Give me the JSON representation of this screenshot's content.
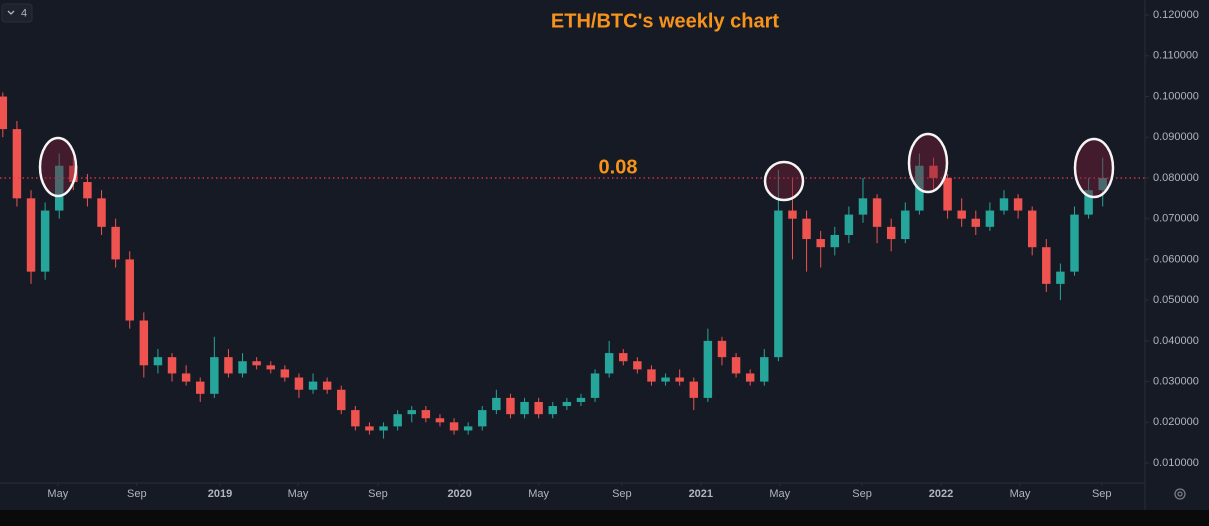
{
  "toolbar": {
    "badge": "4"
  },
  "chart_data": {
    "type": "candlestick",
    "title": "ETH/BTC's weekly chart",
    "x": [
      0,
      3,
      6,
      9,
      12,
      15,
      18,
      21,
      24,
      27,
      30,
      33,
      36,
      39,
      42,
      45,
      48,
      51,
      54,
      57,
      60,
      63,
      66,
      69,
      72,
      75,
      78,
      81,
      84,
      87,
      90,
      93,
      96,
      99,
      102,
      105,
      108,
      111,
      114,
      117,
      120,
      123,
      126,
      129,
      132,
      135,
      138,
      141,
      144,
      147,
      150,
      153,
      156,
      159,
      162,
      165,
      168,
      171,
      174,
      177,
      180,
      183,
      186,
      189,
      192,
      195,
      198,
      201,
      204,
      207,
      210,
      213,
      216,
      219,
      222,
      225,
      228,
      231,
      234
    ],
    "open": [
      0.1,
      0.092,
      0.075,
      0.057,
      0.072,
      0.083,
      0.079,
      0.075,
      0.068,
      0.06,
      0.045,
      0.034,
      0.036,
      0.032,
      0.03,
      0.027,
      0.036,
      0.032,
      0.035,
      0.034,
      0.033,
      0.031,
      0.028,
      0.03,
      0.028,
      0.023,
      0.019,
      0.018,
      0.019,
      0.022,
      0.023,
      0.021,
      0.02,
      0.018,
      0.019,
      0.023,
      0.026,
      0.022,
      0.025,
      0.022,
      0.024,
      0.025,
      0.026,
      0.032,
      0.037,
      0.035,
      0.033,
      0.03,
      0.031,
      0.03,
      0.026,
      0.04,
      0.036,
      0.032,
      0.03,
      0.036,
      0.072,
      0.07,
      0.065,
      0.063,
      0.066,
      0.071,
      0.075,
      0.068,
      0.065,
      0.072,
      0.083,
      0.08,
      0.072,
      0.07,
      0.068,
      0.072,
      0.075,
      0.072,
      0.063,
      0.054,
      0.057,
      0.071,
      0.077
    ],
    "high": [
      0.101,
      0.094,
      0.077,
      0.074,
      0.086,
      0.085,
      0.081,
      0.077,
      0.07,
      0.062,
      0.047,
      0.038,
      0.037,
      0.034,
      0.031,
      0.041,
      0.038,
      0.037,
      0.036,
      0.035,
      0.034,
      0.032,
      0.032,
      0.031,
      0.029,
      0.024,
      0.02,
      0.02,
      0.023,
      0.024,
      0.024,
      0.022,
      0.021,
      0.02,
      0.024,
      0.028,
      0.027,
      0.026,
      0.026,
      0.025,
      0.026,
      0.027,
      0.033,
      0.04,
      0.038,
      0.036,
      0.034,
      0.032,
      0.033,
      0.031,
      0.043,
      0.041,
      0.037,
      0.033,
      0.038,
      0.082,
      0.08,
      0.072,
      0.067,
      0.068,
      0.073,
      0.08,
      0.076,
      0.07,
      0.074,
      0.086,
      0.085,
      0.081,
      0.075,
      0.072,
      0.074,
      0.077,
      0.076,
      0.073,
      0.065,
      0.059,
      0.073,
      0.08,
      0.085
    ],
    "low": [
      0.09,
      0.073,
      0.054,
      0.055,
      0.07,
      0.077,
      0.073,
      0.066,
      0.058,
      0.043,
      0.031,
      0.032,
      0.03,
      0.029,
      0.025,
      0.026,
      0.031,
      0.031,
      0.033,
      0.032,
      0.03,
      0.026,
      0.027,
      0.027,
      0.022,
      0.018,
      0.017,
      0.016,
      0.018,
      0.02,
      0.02,
      0.019,
      0.017,
      0.017,
      0.018,
      0.022,
      0.021,
      0.021,
      0.021,
      0.021,
      0.023,
      0.024,
      0.025,
      0.031,
      0.034,
      0.032,
      0.029,
      0.029,
      0.029,
      0.023,
      0.025,
      0.034,
      0.031,
      0.029,
      0.029,
      0.035,
      0.06,
      0.057,
      0.058,
      0.061,
      0.064,
      0.069,
      0.064,
      0.062,
      0.064,
      0.071,
      0.077,
      0.07,
      0.068,
      0.066,
      0.067,
      0.071,
      0.07,
      0.061,
      0.052,
      0.05,
      0.056,
      0.07,
      0.073
    ],
    "close": [
      0.092,
      0.075,
      0.057,
      0.072,
      0.083,
      0.079,
      0.075,
      0.068,
      0.06,
      0.045,
      0.034,
      0.036,
      0.032,
      0.03,
      0.027,
      0.036,
      0.032,
      0.035,
      0.034,
      0.033,
      0.031,
      0.028,
      0.03,
      0.028,
      0.023,
      0.019,
      0.018,
      0.019,
      0.022,
      0.023,
      0.021,
      0.02,
      0.018,
      0.019,
      0.023,
      0.026,
      0.022,
      0.025,
      0.022,
      0.024,
      0.025,
      0.026,
      0.032,
      0.037,
      0.035,
      0.033,
      0.03,
      0.031,
      0.03,
      0.026,
      0.04,
      0.036,
      0.032,
      0.03,
      0.036,
      0.072,
      0.07,
      0.065,
      0.063,
      0.066,
      0.071,
      0.075,
      0.068,
      0.065,
      0.072,
      0.083,
      0.08,
      0.072,
      0.07,
      0.068,
      0.072,
      0.075,
      0.072,
      0.063,
      0.054,
      0.057,
      0.071,
      0.077,
      0.08
    ],
    "up_color": "#26a69a",
    "down_color": "#ef5350",
    "xlim": [
      -0.6,
      243
    ],
    "xticks": [
      {
        "value": 11.7,
        "label": "May"
      },
      {
        "value": 28.5,
        "label": "Sep"
      },
      {
        "value": 46.2,
        "label": "2019"
      },
      {
        "value": 62.8,
        "label": "May"
      },
      {
        "value": 79.8,
        "label": "Sep"
      },
      {
        "value": 97.2,
        "label": "2020"
      },
      {
        "value": 114.0,
        "label": "May"
      },
      {
        "value": 131.7,
        "label": "Sep"
      },
      {
        "value": 148.5,
        "label": "2021"
      },
      {
        "value": 165.3,
        "label": "May"
      },
      {
        "value": 182.8,
        "label": "Sep"
      },
      {
        "value": 199.6,
        "label": "2022"
      },
      {
        "value": 216.4,
        "label": "May"
      },
      {
        "value": 233.8,
        "label": "Sep"
      }
    ],
    "ylim": [
      0.0051,
      0.1237
    ],
    "yticks": [
      {
        "value": 0.01,
        "label": "0.010000"
      },
      {
        "value": 0.02,
        "label": "0.020000"
      },
      {
        "value": 0.03,
        "label": "0.030000"
      },
      {
        "value": 0.04,
        "label": "0.040000"
      },
      {
        "value": 0.05,
        "label": "0.050000"
      },
      {
        "value": 0.06,
        "label": "0.060000"
      },
      {
        "value": 0.07,
        "label": "0.070000"
      },
      {
        "value": 0.08,
        "label": "0.080000"
      },
      {
        "value": 0.09,
        "label": "0.090000"
      },
      {
        "value": 0.1,
        "label": "0.100000"
      },
      {
        "value": 0.11,
        "label": "0.110000"
      },
      {
        "value": 0.12,
        "label": "0.120000"
      }
    ],
    "grid": false,
    "reference_line": 0.08,
    "reference_color": "#f23645"
  }
}
